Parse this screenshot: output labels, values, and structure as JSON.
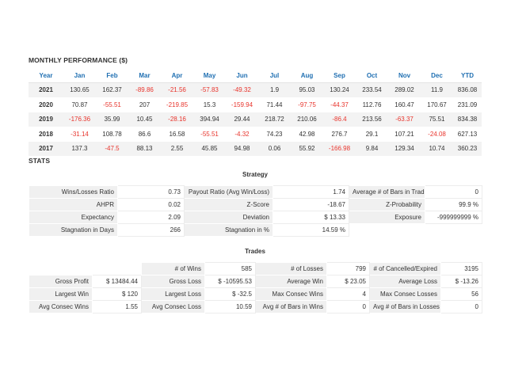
{
  "monthly": {
    "title": "MONTHLY PERFORMANCE ($)",
    "headers": [
      "Year",
      "Jan",
      "Feb",
      "Mar",
      "Apr",
      "May",
      "Jun",
      "Jul",
      "Aug",
      "Sep",
      "Oct",
      "Nov",
      "Dec",
      "YTD"
    ],
    "rows": [
      [
        "2021",
        "130.65",
        "162.37",
        "-89.86",
        "-21.56",
        "-57.83",
        "-49.32",
        "1.9",
        "95.03",
        "130.24",
        "233.54",
        "289.02",
        "11.9",
        "836.08"
      ],
      [
        "2020",
        "70.87",
        "-55.51",
        "207",
        "-219.85",
        "15.3",
        "-159.94",
        "71.44",
        "-97.75",
        "-44.37",
        "112.76",
        "160.47",
        "170.67",
        "231.09"
      ],
      [
        "2019",
        "-176.36",
        "35.99",
        "10.45",
        "-28.16",
        "394.94",
        "29.44",
        "218.72",
        "210.06",
        "-86.4",
        "213.56",
        "-63.37",
        "75.51",
        "834.38"
      ],
      [
        "2018",
        "-31.14",
        "108.78",
        "86.6",
        "16.58",
        "-55.51",
        "-4.32",
        "74.23",
        "42.98",
        "276.7",
        "29.1",
        "107.21",
        "-24.08",
        "627.13"
      ],
      [
        "2017",
        "137.3",
        "-47.5",
        "88.13",
        "2.55",
        "45.85",
        "94.98",
        "0.06",
        "55.92",
        "-166.98",
        "9.84",
        "129.34",
        "10.74",
        "360.23"
      ]
    ]
  },
  "stats": {
    "title": "STATS",
    "strategy_title": "Strategy",
    "strategy_rows": [
      [
        "Wins/Losses Ratio",
        "0.73",
        "Payout Ratio (Avg Win/Loss)",
        "1.74",
        "Average # of Bars in Trade",
        "0"
      ],
      [
        "AHPR",
        "0.02",
        "Z-Score",
        "-18.67",
        "Z-Probability",
        "99.9 %"
      ],
      [
        "Expectancy",
        "2.09",
        "Deviation",
        "$ 13.33",
        "Exposure",
        "-999999999 %"
      ],
      [
        "Stagnation in Days",
        "266",
        "Stagnation in %",
        "14.59 %",
        "",
        ""
      ]
    ],
    "trades_title": "Trades",
    "trades_rows": [
      [
        "",
        "",
        "# of Wins",
        "585",
        "# of Losses",
        "799",
        "# of Cancelled/Expired",
        "3195"
      ],
      [
        "Gross Profit",
        "$ 13484.44",
        "Gross Loss",
        "$ -10595.53",
        "Average Win",
        "$ 23.05",
        "Average Loss",
        "$ -13.26"
      ],
      [
        "Largest Win",
        "$ 120",
        "Largest Loss",
        "$ -32.5",
        "Max Consec Wins",
        "4",
        "Max Consec Losses",
        "56"
      ],
      [
        "Avg Consec Wins",
        "1.55",
        "Avg Consec Loss",
        "10.59",
        "Avg # of Bars in Wins",
        "0",
        "Avg # of Bars in Losses",
        "0"
      ]
    ]
  }
}
